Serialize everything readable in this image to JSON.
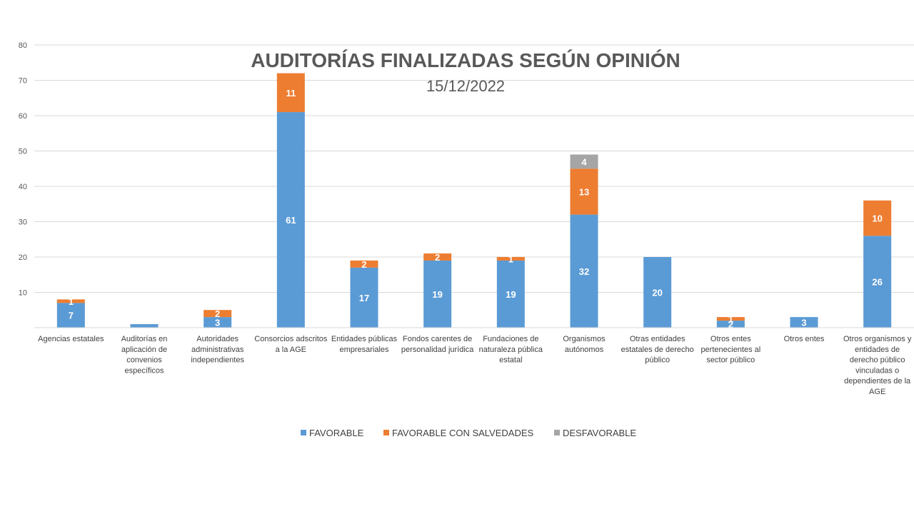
{
  "chart_data": {
    "type": "bar",
    "stacked": true,
    "title": "AUDITORÍAS FINALIZADAS SEGÚN OPINIÓN",
    "subtitle": "15/12/2022",
    "ylim": [
      0,
      80
    ],
    "yticks": [
      10,
      20,
      30,
      40,
      50,
      60,
      70,
      80
    ],
    "grid": true,
    "legend_position": "bottom",
    "categories": [
      "Agencias estatales",
      "Auditorías en aplicación de convenios específicos",
      "Autoridades administrativas independientes",
      "Consorcios adscritos a la AGE",
      "Entidades públicas empresariales",
      "Fondos carentes de personalidad jurídica",
      "Fundaciones de naturaleza pública estatal",
      "Organismos autónomos",
      "Otras entidades estatales de derecho público",
      "Otros entes pertenecientes al sector público",
      "Otros entes",
      "Otros organismos y entidades de derecho público vinculadas o dependientes de la AGE"
    ],
    "category_lines": [
      [
        "Agencias estatales"
      ],
      [
        "Auditorías en",
        "aplicación de",
        "convenios",
        "específicos"
      ],
      [
        "Autoridades",
        "administrativas",
        "independientes"
      ],
      [
        "Consorcios adscritos",
        "a la AGE"
      ],
      [
        "Entidades públicas",
        "empresariales"
      ],
      [
        "Fondos carentes de",
        "personalidad jurídica"
      ],
      [
        "Fundaciones de",
        "naturaleza pública",
        "estatal"
      ],
      [
        "Organismos",
        "autónomos"
      ],
      [
        "Otras entidades",
        "estatales de derecho",
        "público"
      ],
      [
        "Otros entes",
        "pertenecientes al",
        "sector público"
      ],
      [
        "Otros entes"
      ],
      [
        "Otros organismos y",
        "entidades de",
        "derecho público",
        "vinculadas o",
        "dependientes de la",
        "AGE"
      ]
    ],
    "series": [
      {
        "name": "FAVORABLE",
        "color": "#5B9BD5",
        "values": [
          7,
          1,
          3,
          61,
          17,
          19,
          19,
          32,
          20,
          2,
          3,
          26
        ],
        "labels": [
          "7",
          "",
          "3",
          "61",
          "17",
          "19",
          "19",
          "32",
          "20",
          "2",
          "3",
          "26"
        ]
      },
      {
        "name": "FAVORABLE CON SALVEDADES",
        "color": "#ED7D31",
        "values": [
          1,
          0,
          2,
          11,
          2,
          2,
          1,
          13,
          0,
          1,
          0,
          10
        ],
        "labels": [
          "1",
          "",
          "2",
          "11",
          "2",
          "2",
          "1",
          "13",
          "",
          "1",
          "",
          "10"
        ]
      },
      {
        "name": "DESFAVORABLE",
        "color": "#A5A5A5",
        "values": [
          0,
          0,
          0,
          0,
          0,
          0,
          0,
          4,
          0,
          0,
          0,
          0
        ],
        "labels": [
          "",
          "",
          "",
          "",
          "",
          "",
          "",
          "4",
          "",
          "",
          "",
          ""
        ]
      }
    ]
  }
}
